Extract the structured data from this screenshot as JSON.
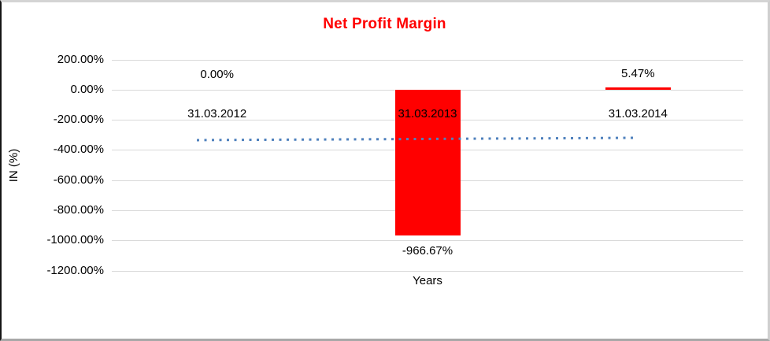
{
  "chart_data": {
    "type": "bar",
    "title": "Net Profit Margin",
    "xlabel": "Years",
    "ylabel": "IN (%)",
    "categories": [
      "31.03.2012",
      "31.03.2013",
      "31.03.2014"
    ],
    "values": [
      0,
      -966.67,
      5.47
    ],
    "data_labels": [
      "0.00%",
      "-966.67%",
      "5.47%"
    ],
    "ylim": [
      -1200,
      200
    ],
    "yticks": [
      {
        "label": "200.00%",
        "value": 200
      },
      {
        "label": "0.00%",
        "value": 0
      },
      {
        "label": "-200.00%",
        "value": -200
      },
      {
        "label": "-400.00%",
        "value": -400
      },
      {
        "label": "-600.00%",
        "value": -600
      },
      {
        "label": "-800.00%",
        "value": -800
      },
      {
        "label": "-1000.00%",
        "value": -1000
      },
      {
        "label": "-1200.00%",
        "value": -1200
      }
    ],
    "grid": true,
    "legend_position": "none",
    "trendline": {
      "type": "linear",
      "style": "dotted",
      "approx_level_pct": -318
    },
    "colors": {
      "bar": "#ff0000",
      "title": "#ff0000",
      "trendline": "#4f81bd",
      "gridline": "#d9d9d9",
      "text": "#000000"
    }
  }
}
